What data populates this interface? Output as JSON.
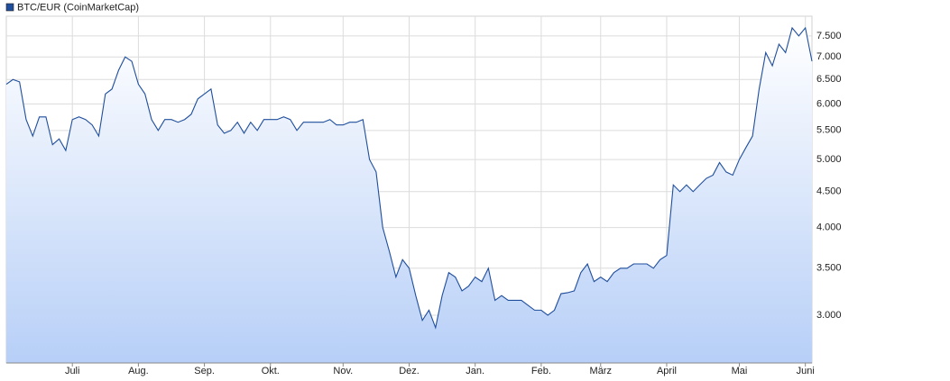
{
  "chart_data": {
    "type": "line",
    "categories": [
      null,
      null,
      null,
      null,
      null,
      null,
      null,
      null,
      null,
      null,
      "Juli",
      null,
      null,
      null,
      null,
      null,
      null,
      null,
      null,
      null,
      "Aug.",
      null,
      null,
      null,
      null,
      null,
      null,
      null,
      null,
      null,
      "Sep.",
      null,
      null,
      null,
      null,
      null,
      null,
      null,
      null,
      null,
      "Okt.",
      null,
      null,
      null,
      null,
      null,
      null,
      null,
      null,
      null,
      null,
      "Nov.",
      null,
      null,
      null,
      null,
      null,
      null,
      null,
      null,
      null,
      "Dez.",
      null,
      null,
      null,
      null,
      null,
      null,
      null,
      null,
      null,
      "Jan.",
      null,
      null,
      null,
      null,
      null,
      null,
      null,
      null,
      null,
      "Feb.",
      null,
      null,
      null,
      null,
      null,
      null,
      null,
      null,
      "März",
      null,
      null,
      null,
      null,
      null,
      null,
      null,
      null,
      null,
      "April",
      null,
      null,
      null,
      null,
      null,
      null,
      null,
      null,
      null,
      null,
      "Mai",
      null,
      null,
      null,
      null,
      null,
      null,
      null,
      null,
      null,
      "Juni",
      null
    ],
    "series": [
      {
        "name": "BTC/EUR (CoinMarketCap)",
        "color": "#1f4e9c",
        "values": [
          6400,
          6500,
          6450,
          5700,
          5400,
          5750,
          5750,
          5250,
          5350,
          5150,
          5700,
          5750,
          5700,
          5600,
          5400,
          6200,
          6300,
          6700,
          7000,
          6900,
          6400,
          6200,
          5700,
          5500,
          5700,
          5700,
          5650,
          5700,
          5800,
          6100,
          6200,
          6300,
          5600,
          5450,
          5500,
          5650,
          5450,
          5650,
          5500,
          5700,
          5700,
          5700,
          5750,
          5700,
          5500,
          5650,
          5650,
          5650,
          5650,
          5700,
          5600,
          5600,
          5650,
          5650,
          5700,
          5000,
          4800,
          4000,
          3700,
          3400,
          3600,
          3500,
          3200,
          2950,
          3050,
          2880,
          3200,
          3450,
          3400,
          3250,
          3300,
          3400,
          3350,
          3500,
          3150,
          3200,
          3150,
          3150,
          3150,
          3100,
          3050,
          3050,
          3000,
          3050,
          3220,
          3230,
          3250,
          3450,
          3550,
          3350,
          3400,
          3350,
          3450,
          3500,
          3500,
          3550,
          3550,
          3550,
          3500,
          3600,
          3650,
          4600,
          4500,
          4600,
          4500,
          4600,
          4700,
          4750,
          4950,
          4800,
          4750,
          5000,
          5200,
          5400,
          6300,
          7100,
          6800,
          7300,
          7100,
          7700,
          7500,
          7700,
          6900
        ]
      }
    ],
    "ylim": [
      2565,
      8000
    ],
    "log_scale": true,
    "grid": true,
    "yticks": [
      {
        "value": 3000,
        "label": "3.000"
      },
      {
        "value": 3500,
        "label": "3.500"
      },
      {
        "value": 4000,
        "label": "4.000"
      },
      {
        "value": 4500,
        "label": "4.500"
      },
      {
        "value": 5000,
        "label": "5.000"
      },
      {
        "value": 5500,
        "label": "5.500"
      },
      {
        "value": 6000,
        "label": "6.000"
      },
      {
        "value": 6500,
        "label": "6.500"
      },
      {
        "value": 7000,
        "label": "7.000"
      },
      {
        "value": 7500,
        "label": "7.500"
      }
    ]
  }
}
